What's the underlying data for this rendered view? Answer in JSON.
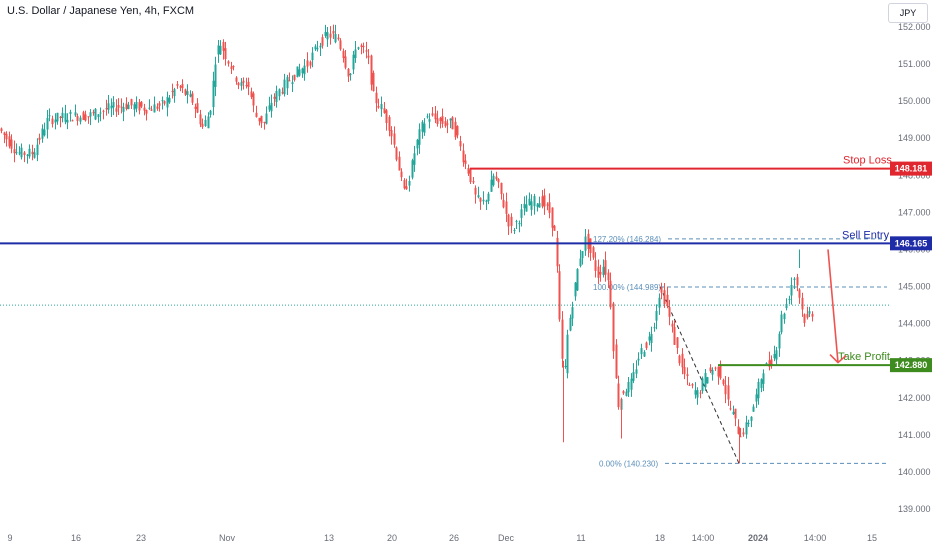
{
  "header": {
    "title": "U.S. Dollar / Japanese Yen, 4h, FXCM",
    "currency": "JPY"
  },
  "colors": {
    "up": "#26a69a",
    "down": "#ef5350",
    "stop": "#e0262f",
    "entry": "#1f2ca8",
    "target": "#3e8b1f",
    "fib": "#5b8fb9"
  },
  "chart_data": {
    "type": "candlestick",
    "title": "U.S. Dollar / Japanese Yen, 4h, FXCM",
    "ylim": [
      138.8,
      152.4
    ],
    "y_ticks": [
      "139.000",
      "140.000",
      "141.000",
      "142.000",
      "143.000",
      "144.000",
      "145.000",
      "146.000",
      "147.000",
      "148.000",
      "149.000",
      "150.000",
      "151.000",
      "152.000"
    ],
    "x_ticks": [
      "9",
      "16",
      "23",
      "Nov",
      "13",
      "20",
      "26",
      "Dec",
      "11",
      "18",
      "14:00",
      "2024",
      "14:00",
      "15"
    ],
    "levels": [
      {
        "name": "Stop Loss",
        "price": 148.181,
        "label": "148.181"
      },
      {
        "name": "Sell Entry",
        "price": 146.165,
        "label": "146.165"
      },
      {
        "name": "Take Profit",
        "price": 142.88,
        "label": "142.880"
      }
    ],
    "fibonacci": [
      {
        "label": "127.20% (146.284)",
        "price": 146.284
      },
      {
        "label": "100.00% (144.989)",
        "price": 144.989
      },
      {
        "label": "0.00% (140.230)",
        "price": 140.23
      }
    ],
    "path_points": [
      [
        0,
        149.3
      ],
      [
        20,
        148.6
      ],
      [
        35,
        148.6
      ],
      [
        50,
        149.5
      ],
      [
        70,
        149.6
      ],
      [
        90,
        149.6
      ],
      [
        110,
        149.8
      ],
      [
        130,
        149.9
      ],
      [
        150,
        149.8
      ],
      [
        165,
        149.9
      ],
      [
        180,
        150.4
      ],
      [
        195,
        150.0
      ],
      [
        205,
        149.3
      ],
      [
        212,
        149.7
      ],
      [
        218,
        151.2
      ],
      [
        222,
        151.6
      ],
      [
        232,
        151.0
      ],
      [
        242,
        150.4
      ],
      [
        250,
        150.5
      ],
      [
        258,
        149.6
      ],
      [
        266,
        149.4
      ],
      [
        274,
        150.0
      ],
      [
        282,
        150.3
      ],
      [
        292,
        150.6
      ],
      [
        300,
        150.8
      ],
      [
        310,
        151.0
      ],
      [
        320,
        151.5
      ],
      [
        330,
        151.8
      ],
      [
        340,
        151.7
      ],
      [
        346,
        151.2
      ],
      [
        352,
        150.6
      ],
      [
        358,
        151.5
      ],
      [
        364,
        151.4
      ],
      [
        370,
        151.2
      ],
      [
        376,
        150.1
      ],
      [
        384,
        149.8
      ],
      [
        392,
        149.3
      ],
      [
        400,
        148.4
      ],
      [
        406,
        147.5
      ],
      [
        412,
        148.0
      ],
      [
        418,
        148.8
      ],
      [
        424,
        149.3
      ],
      [
        430,
        149.6
      ],
      [
        438,
        149.5
      ],
      [
        446,
        149.4
      ],
      [
        454,
        149.4
      ],
      [
        460,
        149.0
      ],
      [
        466,
        148.4
      ],
      [
        472,
        148.0
      ],
      [
        478,
        147.4
      ],
      [
        484,
        147.2
      ],
      [
        490,
        147.5
      ],
      [
        496,
        148.0
      ],
      [
        502,
        147.6
      ],
      [
        508,
        147.0
      ],
      [
        514,
        146.5
      ],
      [
        520,
        146.8
      ],
      [
        528,
        147.2
      ],
      [
        536,
        147.3
      ],
      [
        544,
        147.3
      ],
      [
        552,
        147.0
      ],
      [
        558,
        146.3
      ],
      [
        562,
        144.0
      ],
      [
        566,
        142.4
      ],
      [
        570,
        143.8
      ],
      [
        576,
        144.8
      ],
      [
        582,
        145.8
      ],
      [
        588,
        146.3
      ],
      [
        594,
        145.8
      ],
      [
        600,
        145.3
      ],
      [
        606,
        145.6
      ],
      [
        612,
        145.0
      ],
      [
        616,
        143.2
      ],
      [
        620,
        141.8
      ],
      [
        626,
        142.2
      ],
      [
        634,
        142.4
      ],
      [
        642,
        143.2
      ],
      [
        650,
        143.5
      ],
      [
        656,
        144.0
      ],
      [
        662,
        144.9
      ],
      [
        668,
        144.6
      ],
      [
        676,
        143.6
      ],
      [
        684,
        142.8
      ],
      [
        692,
        142.3
      ],
      [
        700,
        142.1
      ],
      [
        708,
        142.6
      ],
      [
        716,
        142.8
      ],
      [
        724,
        142.6
      ],
      [
        730,
        141.9
      ],
      [
        736,
        141.5
      ],
      [
        742,
        141.0
      ],
      [
        748,
        141.2
      ],
      [
        754,
        141.6
      ],
      [
        760,
        142.2
      ],
      [
        766,
        142.8
      ],
      [
        772,
        142.9
      ],
      [
        778,
        143.3
      ],
      [
        784,
        144.2
      ],
      [
        790,
        144.6
      ],
      [
        796,
        145.3
      ],
      [
        800,
        145.0
      ],
      [
        804,
        144.4
      ],
      [
        808,
        144.0
      ],
      [
        812,
        144.3
      ]
    ],
    "price_line": 144.5
  }
}
